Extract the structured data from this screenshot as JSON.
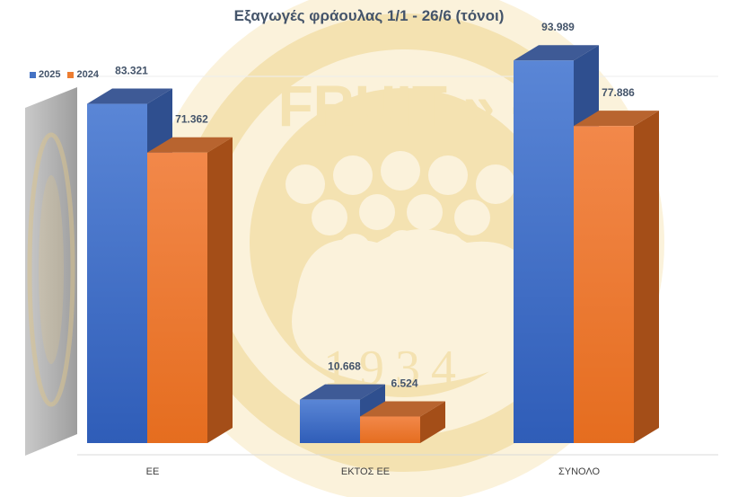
{
  "chart_data": {
    "type": "bar",
    "title": "Εξαγωγές φράουλας 1/1 -  26/6 (τόνοι)",
    "categories": [
      "ΕΕ",
      "ΕΚΤΟΣ ΕΕ",
      "ΣΥΝΟΛΟ"
    ],
    "series": [
      {
        "name": "2025",
        "values": [
          83321,
          10668,
          93989
        ],
        "labels": [
          "83.321",
          "10.668",
          "93.989"
        ],
        "color": "#4472c4"
      },
      {
        "name": "2024",
        "values": [
          71362,
          6524,
          77886
        ],
        "labels": [
          "71.362",
          "6.524",
          "77.886"
        ],
        "color": "#ed7d31"
      }
    ],
    "xlabel": "",
    "ylabel": "",
    "ylim": [
      0,
      100000
    ],
    "grid": false,
    "legend_position": "top-left",
    "style": "3d-column"
  },
  "watermark": {
    "text": "FRUIT » -",
    "year": "1934",
    "color": "#f3dfa9"
  }
}
